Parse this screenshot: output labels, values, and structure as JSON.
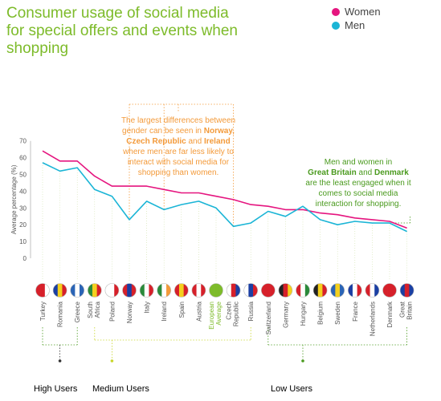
{
  "title": "Consumer usage of social media for special offers and events when shopping",
  "legend": [
    {
      "label": "Women",
      "color": "#e5157f"
    },
    {
      "label": "Men",
      "color": "#1bb5d6"
    }
  ],
  "annotation_1": {
    "line1": "The largest differences between",
    "line2_a": "gender can be seen in ",
    "line2_b": "Norway,",
    "line3": "Czech Republic",
    "line3_b": " and ",
    "line3_c": "Ireland",
    "line4": "where men are far less likely to",
    "line5": "interact with social media for",
    "line6": "shopping than women."
  },
  "annotation_2": {
    "line1": "Men and women in",
    "line2_a": "Great Britain",
    "line2_b": " and ",
    "line2_c": "Denmark",
    "line3": "are the least engaged when it",
    "line4": "comes to social media",
    "line5": "interaction for shopping."
  },
  "groups": [
    {
      "label": "High Users",
      "color": "#2a2a2a"
    },
    {
      "label": "Medium Users",
      "color": "#c8d62a"
    },
    {
      "label": "Low Users",
      "color": "#4a9a1e"
    }
  ],
  "colors": {
    "women": "#e5157f",
    "men": "#1bb5d6",
    "axis": "#555555",
    "highlight": "#7dbb2a"
  },
  "chart_data": {
    "type": "line",
    "title": "Consumer usage of social media for special offers and events when shopping",
    "ylabel": "Average percentage (%)",
    "xlabel": "",
    "ylim": [
      0,
      70
    ],
    "yticks": [
      0,
      10,
      20,
      30,
      40,
      50,
      60,
      70
    ],
    "categories": [
      "Turkey",
      "Romania",
      "Greece",
      "South Africa",
      "Poland",
      "Norway",
      "Italy",
      "Ireland",
      "Spain",
      "Austria",
      "European Average",
      "Czech Republic",
      "Russia",
      "Switzerland",
      "Germany",
      "Hungary",
      "Belgium",
      "Sweden",
      "France",
      "Netherlands",
      "Denmark",
      "Great Britain"
    ],
    "series": [
      {
        "name": "Women",
        "values": [
          64,
          58,
          58,
          49,
          43,
          43,
          43,
          41,
          39,
          39,
          37,
          35,
          32,
          31,
          29,
          29,
          27,
          26,
          24,
          23,
          22,
          18
        ]
      },
      {
        "name": "Men",
        "values": [
          57,
          52,
          54,
          41,
          37,
          23,
          34,
          29,
          32,
          34,
          30,
          19,
          21,
          28,
          25,
          31,
          23,
          20,
          22,
          21,
          21,
          16
        ]
      }
    ],
    "grid": false,
    "legend": "top-right"
  }
}
